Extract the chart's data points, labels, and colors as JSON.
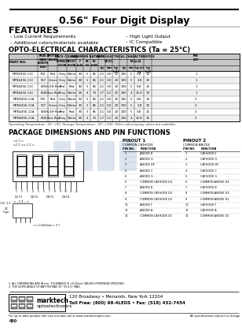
{
  "title": "0.56\" Four Digit Display",
  "features_title": "FEATURES",
  "features_left": [
    "Low Current Requirements",
    "Additional colors/materials available"
  ],
  "features_right": [
    "High Light Output",
    "IC Compatible"
  ],
  "opto_title": "OPTO-ELECTRICAL CHARACTERISTICS (Ta = 25°C)",
  "rows": [
    [
      "MTN2456-11C",
      "700",
      "Red",
      "Grey",
      "White",
      "30",
      "5",
      "85",
      "2.1",
      "3.0",
      "20",
      "100",
      "5",
      "0.8",
      "10",
      "1"
    ],
    [
      "MTN2456-11C",
      "567",
      "Green",
      "Grey",
      "White",
      "30",
      "5",
      "85",
      "2.1",
      "3.0",
      "20",
      "100",
      "5",
      "2.8",
      "10",
      "1"
    ],
    [
      "MTN4456-11C",
      "635",
      "Hi-Eff Red",
      "Red",
      "Red",
      "30",
      "5",
      "85",
      "2.1",
      "3.0",
      "20",
      "100",
      "5",
      "0.8",
      "10",
      "1"
    ],
    [
      "MTN4456-11C",
      "660",
      "Ultra Red",
      "Grey",
      "White",
      "30",
      "4",
      "70",
      "1.7",
      "2.2",
      "20",
      "100",
      "4",
      "12.8",
      "10",
      "1"
    ],
    [
      "MTN5456-11A",
      "700",
      "Red",
      "Grey",
      "White",
      "30",
      "5",
      "85",
      "2.1",
      "3.0",
      "20",
      "100",
      "5",
      "0.8",
      "10",
      "2"
    ],
    [
      "MTN2456-11A",
      "567",
      "Green",
      "Grey",
      "White",
      "30",
      "5",
      "85",
      "2.1",
      "3.0",
      "20",
      "100",
      "5",
      "2.8",
      "10",
      "2"
    ],
    [
      "MTN2456-11A",
      "635",
      "Hi-Eff Red",
      "Red",
      "Red",
      "30",
      "5",
      "85",
      "2.1",
      "3.0",
      "20",
      "100",
      "5",
      "0.8",
      "10",
      "2"
    ],
    [
      "MTN4456-11A",
      "660",
      "Ultra Red",
      "Grey",
      "White",
      "30",
      "4",
      "70",
      "1.7",
      "2.2",
      "20",
      "100",
      "4",
      "12.8",
      "10",
      "2"
    ]
  ],
  "note": "Operating Temperature: -20~+85. Storage Temperature: -20~+100. Other colors/epoxy colors are available.",
  "pkg_title": "PACKAGE DIMENSIONS AND PIN FUNCTIONS",
  "pinout1_title": "PINOUT 1",
  "pinout1_sub": "COMMON CATHODE",
  "pinout1": [
    [
      "1",
      "ANODE B"
    ],
    [
      "2",
      "ANODE G"
    ],
    [
      "3",
      "ANODE DP"
    ],
    [
      "4",
      "ANODE C"
    ],
    [
      "5",
      "ANODE G"
    ],
    [
      "6",
      "COMMON CATHODE D4"
    ],
    [
      "7",
      "ANODE B"
    ],
    [
      "8",
      "COMMON CATHODE D3"
    ],
    [
      "9",
      "COMMON CATHODE D2"
    ],
    [
      "10",
      "ANODE F"
    ],
    [
      "11",
      "ANODE A"
    ],
    [
      "12",
      "COMMON CATHODE D1"
    ]
  ],
  "pinout2_title": "PINOUT 2",
  "pinout2_sub": "COMMON ANODE",
  "pinout2": [
    [
      "1",
      "CATHODE E"
    ],
    [
      "2",
      "CATHODE G"
    ],
    [
      "3",
      "CATHODE DP"
    ],
    [
      "4",
      "CATHODE C"
    ],
    [
      "5",
      "CATHODE G"
    ],
    [
      "6",
      "COMMON ANODE D4"
    ],
    [
      "7",
      "CATHODE B"
    ],
    [
      "8",
      "COMMON ANODE D3"
    ],
    [
      "9",
      "COMMON ANODE D2"
    ],
    [
      "10",
      "CATHODE F"
    ],
    [
      "11",
      "CATHODE A"
    ],
    [
      "12",
      "COMMON ANODE D1"
    ]
  ],
  "footer_line1": "120 Broadway • Menands, New York 12204",
  "footer_line2": "Toll Free: (800) 98-4LEDS • Fax: (518) 432-7454",
  "footer_web": "For up-to-date product info visit our web site at www.marktechopto.com",
  "footer_note": "All specifications subject to change",
  "part_note": "430",
  "bg_color": "#ffffff"
}
